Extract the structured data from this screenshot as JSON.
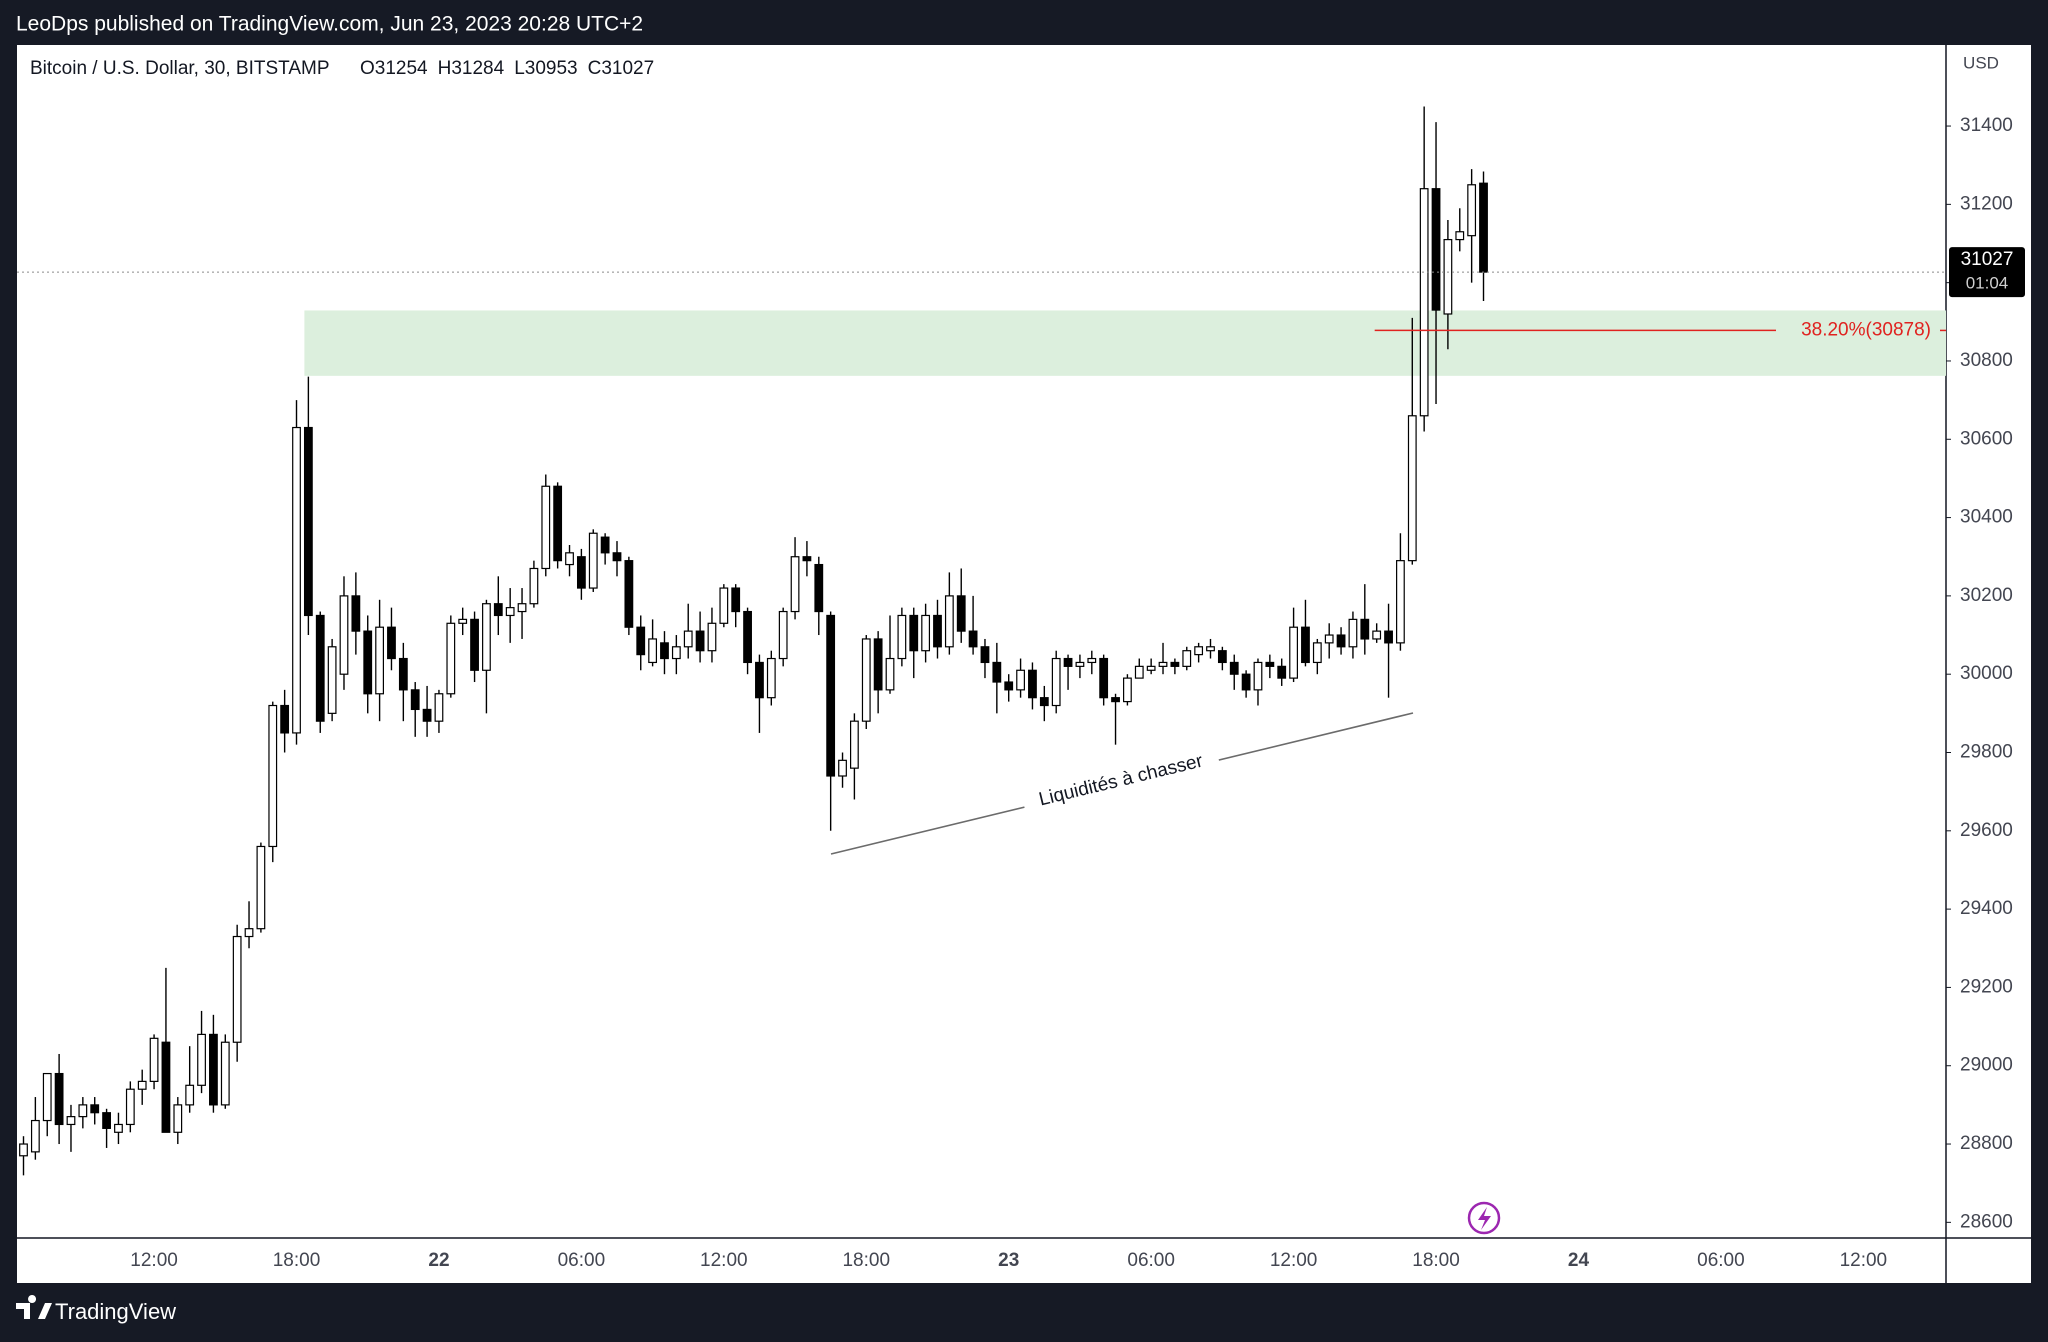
{
  "header": {
    "title": "LeoDps published on TradingView.com, Jun 23, 2023 20:28 UTC+2"
  },
  "footer": {
    "brand": "TradingView"
  },
  "chart_data": {
    "type": "candlestick",
    "title": "Bitcoin / U.S. Dollar, 30, BITSTAMP",
    "ohlc_keys": [
      "O",
      "H",
      "L",
      "C"
    ],
    "currency": "USD",
    "countdown": "01:04",
    "up_color": "#ffffff",
    "down_color": "#000000",
    "border_color": "#000000",
    "ylim": [
      28560,
      31607
    ],
    "yticks": [
      28600,
      28800,
      29000,
      29200,
      29400,
      29600,
      29800,
      30000,
      30200,
      30400,
      30600,
      30800,
      31000,
      31200,
      31400
    ],
    "categories": [
      null,
      null,
      null,
      null,
      null,
      null,
      null,
      null,
      null,
      null,
      null,
      "12:00",
      null,
      null,
      null,
      null,
      null,
      null,
      null,
      null,
      null,
      null,
      null,
      "18:00",
      null,
      null,
      null,
      null,
      null,
      null,
      null,
      null,
      null,
      null,
      null,
      "22",
      null,
      null,
      null,
      null,
      null,
      null,
      null,
      null,
      null,
      null,
      null,
      "06:00",
      null,
      null,
      null,
      null,
      null,
      null,
      null,
      null,
      null,
      null,
      null,
      "12:00",
      null,
      null,
      null,
      null,
      null,
      null,
      null,
      null,
      null,
      null,
      null,
      "18:00",
      null,
      null,
      null,
      null,
      null,
      null,
      null,
      null,
      null,
      null,
      null,
      "23",
      null,
      null,
      null,
      null,
      null,
      null,
      null,
      null,
      null,
      null,
      null,
      "06:00",
      null,
      null,
      null,
      null,
      null,
      null,
      null,
      null,
      null,
      null,
      null,
      "12:00",
      null,
      null,
      null,
      null,
      null,
      null,
      null,
      null,
      null,
      null,
      null,
      "18:00",
      null,
      null,
      null,
      null,
      null,
      null,
      null,
      null,
      null,
      null,
      null,
      "24",
      null,
      null,
      null,
      null,
      null,
      null,
      null,
      null,
      null,
      null,
      null,
      "06:00",
      null,
      null,
      null,
      null,
      null,
      null,
      null,
      null,
      null,
      null,
      null,
      "12:00",
      null,
      null,
      null,
      null,
      null,
      null
    ],
    "open": [
      28770,
      28780,
      28860,
      28980,
      28850,
      28870,
      28900,
      28880,
      28830,
      28850,
      28940,
      28960,
      29060,
      28830,
      28900,
      28950,
      29080,
      28900,
      29060,
      29330,
      29350,
      29560,
      29920,
      29850,
      30630,
      30150,
      29900,
      30000,
      30200,
      30110,
      29950,
      30120,
      30040,
      29960,
      29910,
      29880,
      29950,
      30130,
      30140,
      30010,
      30180,
      30150,
      30160,
      30180,
      30270,
      30480,
      30280,
      30300,
      30220,
      30350,
      30310,
      30290,
      30120,
      30030,
      30080,
      30040,
      30070,
      30110,
      30060,
      30130,
      30220,
      30160,
      30030,
      29940,
      30040,
      30160,
      30300,
      30280,
      30150,
      29740,
      29760,
      29880,
      30090,
      29960,
      30040,
      30150,
      30060,
      30150,
      30070,
      30200,
      30110,
      30070,
      30030,
      29980,
      29960,
      30010,
      29940,
      29920,
      30040,
      30020,
      30030,
      30040,
      29940,
      29930,
      29990,
      30010,
      30020,
      30030,
      30020,
      30050,
      30060,
      30060,
      30030,
      30000,
      29960,
      30030,
      30020,
      29990,
      30120,
      30030,
      30080,
      30100,
      30070,
      30140,
      30090,
      30110,
      30080,
      30290,
      30660,
      31240,
      30920,
      31110,
      31120,
      31254,
      null,
      null,
      null,
      null,
      null,
      null,
      null,
      null,
      null,
      null,
      null,
      null,
      null,
      null,
      null,
      null,
      null,
      null,
      null,
      null,
      null,
      null,
      null,
      null,
      null,
      null,
      null,
      null,
      null,
      null,
      null,
      null,
      null,
      null,
      null,
      null,
      null,
      null
    ],
    "high": [
      28820,
      28920,
      28980,
      29030,
      28900,
      28920,
      28920,
      28890,
      28880,
      28960,
      28990,
      29080,
      29250,
      28920,
      29050,
      29140,
      29130,
      29080,
      29360,
      29420,
      29570,
      29930,
      29960,
      30700,
      30760,
      30160,
      30090,
      30250,
      30260,
      30150,
      30190,
      30170,
      30080,
      29980,
      29970,
      29960,
      30150,
      30170,
      30160,
      30190,
      30250,
      30220,
      30220,
      30290,
      30510,
      30490,
      30330,
      30320,
      30370,
      30360,
      30340,
      30300,
      30150,
      30140,
      30110,
      30100,
      30180,
      30160,
      30170,
      30230,
      30230,
      30170,
      30050,
      30060,
      30170,
      30350,
      30340,
      30300,
      30160,
      29800,
      29900,
      30100,
      30110,
      30150,
      30170,
      30170,
      30180,
      30190,
      30260,
      30270,
      30200,
      30090,
      30080,
      30000,
      30040,
      30030,
      29970,
      30060,
      30050,
      30050,
      30060,
      30050,
      29950,
      30000,
      30040,
      30040,
      30080,
      30040,
      30070,
      30080,
      30090,
      30070,
      30050,
      30010,
      30040,
      30050,
      30040,
      30170,
      30190,
      30090,
      30130,
      30120,
      30160,
      30230,
      30130,
      30180,
      30360,
      30910,
      31450,
      31410,
      31160,
      31190,
      31290,
      31284,
      null,
      null,
      null,
      null,
      null,
      null,
      null,
      null,
      null,
      null,
      null,
      null,
      null,
      null,
      null,
      null,
      null,
      null,
      null,
      null,
      null,
      null,
      null,
      null,
      null,
      null,
      null,
      null,
      null,
      null,
      null,
      null,
      null,
      null,
      null,
      null,
      null,
      null
    ],
    "low": [
      28720,
      28760,
      28820,
      28800,
      28780,
      28840,
      28850,
      28790,
      28800,
      28830,
      28900,
      28940,
      28830,
      28800,
      28880,
      28930,
      28880,
      28890,
      29010,
      29300,
      29340,
      29520,
      29800,
      29820,
      30100,
      29850,
      29880,
      29960,
      30050,
      29900,
      29880,
      30010,
      29880,
      29840,
      29840,
      29850,
      29940,
      30100,
      29980,
      29900,
      30100,
      30080,
      30090,
      30170,
      30250,
      30270,
      30250,
      30190,
      30210,
      30280,
      30250,
      30100,
      30010,
      30020,
      30000,
      30000,
      30040,
      30030,
      30030,
      30120,
      30120,
      30000,
      29850,
      29920,
      30020,
      30140,
      30250,
      30100,
      29600,
      29710,
      29680,
      29860,
      29900,
      29950,
      30020,
      29990,
      30030,
      30040,
      30050,
      30080,
      30050,
      29990,
      29900,
      29930,
      29940,
      29910,
      29880,
      29900,
      29960,
      29990,
      30000,
      29920,
      29820,
      29920,
      29990,
      30000,
      30000,
      30000,
      30010,
      30030,
      30040,
      30010,
      29960,
      29940,
      29920,
      29990,
      29970,
      29980,
      30020,
      30000,
      30040,
      30050,
      30040,
      30050,
      30080,
      29940,
      30060,
      30280,
      30620,
      30690,
      30830,
      31080,
      31000,
      30953,
      null,
      null,
      null,
      null,
      null,
      null,
      null,
      null,
      null,
      null,
      null,
      null,
      null,
      null,
      null,
      null,
      null,
      null,
      null,
      null,
      null,
      null,
      null,
      null,
      null,
      null,
      null,
      null,
      null,
      null,
      null,
      null,
      null,
      null,
      null,
      null,
      null,
      null
    ],
    "close": [
      28800,
      28860,
      28980,
      28850,
      28870,
      28900,
      28880,
      28840,
      28850,
      28940,
      28960,
      29070,
      28830,
      28900,
      28950,
      29080,
      28900,
      29060,
      29330,
      29350,
      29560,
      29920,
      29850,
      30630,
      30150,
      29880,
      30070,
      30200,
      30110,
      29950,
      30120,
      30040,
      29960,
      29910,
      29880,
      29950,
      30130,
      30140,
      30010,
      30180,
      30150,
      30170,
      30180,
      30270,
      30480,
      30290,
      30310,
      30220,
      30360,
      30310,
      30290,
      30120,
      30050,
      30090,
      30040,
      30070,
      30110,
      30060,
      30130,
      30220,
      30160,
      30030,
      29940,
      30040,
      30160,
      30300,
      30290,
      30160,
      29740,
      29780,
      29880,
      30090,
      29960,
      30040,
      30150,
      30060,
      30150,
      30070,
      30200,
      30110,
      30070,
      30030,
      29980,
      29960,
      30010,
      29940,
      29920,
      30040,
      30020,
      30030,
      30040,
      29940,
      29930,
      29990,
      30020,
      30020,
      30030,
      30020,
      30060,
      30070,
      30070,
      30030,
      30000,
      29960,
      30030,
      30020,
      29990,
      30120,
      30030,
      30080,
      30100,
      30070,
      30140,
      30090,
      30110,
      30080,
      30290,
      30660,
      31240,
      30930,
      31110,
      31130,
      31250,
      31027,
      null,
      null,
      null,
      null,
      null,
      null,
      null,
      null,
      null,
      null,
      null,
      null,
      null,
      null,
      null,
      null,
      null,
      null,
      null,
      null,
      null,
      null,
      null,
      null,
      null,
      null,
      null,
      null,
      null,
      null,
      null,
      null,
      null,
      null,
      null,
      null,
      null,
      null
    ],
    "zone": {
      "top": 30929,
      "bottom": 30762,
      "color": "#dcefdd"
    },
    "fib": {
      "label": "38.20%(30878)",
      "value": 30878,
      "color": "#e0221f"
    },
    "annotation": {
      "text": "Liquidités à chasser"
    }
  }
}
